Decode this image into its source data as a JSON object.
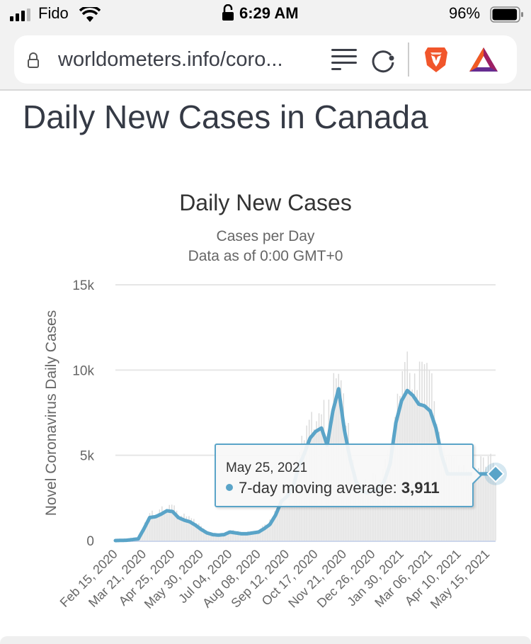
{
  "status_bar": {
    "carrier": "Fido",
    "time": "6:29 AM",
    "battery": "96%",
    "battery_level": 0.96,
    "signal_bars": 3,
    "icons": [
      "signal-icon",
      "wifi-icon",
      "orientation-lock-icon",
      "battery-icon"
    ]
  },
  "browser": {
    "url": "worldometers.info/coro...",
    "icons": [
      "lock-icon",
      "reader-mode-icon",
      "reload-icon",
      "brave-shields-icon",
      "brave-rewards-icon"
    ]
  },
  "page": {
    "title": "Daily New Cases in Canada"
  },
  "colors": {
    "line": "#5aa4c8",
    "area": "#e8e8e8",
    "bars": "#dcdcdc",
    "grid": "#e6e6e6",
    "axis": "#ccd6eb"
  },
  "chart_data": {
    "type": "line",
    "title": "Daily New Cases",
    "subtitle_lines": [
      "Cases per Day",
      "Data as of 0:00 GMT+0"
    ],
    "xlabel": "",
    "ylabel": "Novel Coronavirus Daily Cases",
    "ylim": [
      0,
      15000
    ],
    "yticks": [
      0,
      5000,
      10000,
      15000
    ],
    "ytick_labels": [
      "0",
      "5k",
      "10k",
      "15k"
    ],
    "xtick_labels": [
      "Feb 15, 2020",
      "Mar 21, 2020",
      "Apr 25, 2020",
      "May 30, 2020",
      "Jul 04, 2020",
      "Aug 08, 2020",
      "Sep 12, 2020",
      "Oct 17, 2020",
      "Nov 21, 2020",
      "Dec 26, 2020",
      "Jan 30, 2021",
      "Mar 06, 2021",
      "Apr 10, 2021",
      "May 15, 2021"
    ],
    "x_start_date": "Feb 15, 2020",
    "x_end_date": "May 25, 2021",
    "grid": true,
    "legend": "none",
    "series": [
      {
        "name": "7-day moving average",
        "x_days": [
          0,
          14,
          28,
          35,
          42,
          49,
          56,
          63,
          70,
          77,
          84,
          91,
          98,
          105,
          112,
          119,
          126,
          133,
          140,
          147,
          154,
          161,
          168,
          175,
          182,
          189,
          196,
          203,
          210,
          217,
          224,
          231,
          238,
          245,
          252,
          259,
          266,
          273,
          280,
          287,
          294,
          301,
          308,
          315,
          322,
          329,
          336,
          343,
          350,
          357,
          364,
          371,
          378,
          385,
          392,
          399,
          406,
          413,
          420,
          427,
          434,
          441,
          448,
          455,
          462
        ],
        "values": [
          0,
          20,
          100,
          700,
          1350,
          1400,
          1550,
          1750,
          1700,
          1350,
          1200,
          1100,
          900,
          650,
          450,
          350,
          320,
          350,
          500,
          450,
          400,
          400,
          450,
          500,
          700,
          950,
          1500,
          2300,
          2600,
          3100,
          4300,
          5100,
          6000,
          6400,
          6600,
          5600,
          7600,
          8900,
          6500,
          4800,
          3500,
          2900,
          2800,
          2950,
          3000,
          3500,
          4500,
          6900,
          8200,
          8800,
          8500,
          8000,
          7900,
          7600,
          6600,
          5000,
          3911,
          3911,
          3911,
          3911,
          3911,
          3911,
          3911,
          3911,
          3911
        ]
      }
    ],
    "tooltip": {
      "date": "May 25, 2021",
      "series_label": "7-day moving average: ",
      "value": "3,911"
    }
  }
}
